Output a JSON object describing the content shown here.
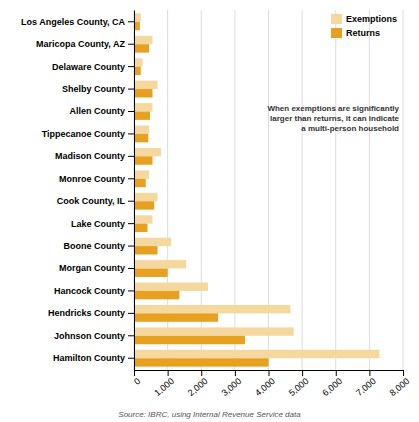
{
  "chart_data": {
    "type": "bar",
    "orientation": "horizontal",
    "categories": [
      "Los Angeles County, CA",
      "Maricopa County, AZ",
      "Delaware County",
      "Shelby County",
      "Allen County",
      "Tippecanoe County",
      "Madison County",
      "Monroe County",
      "Cook County, IL",
      "Lake County",
      "Boone County",
      "Morgan County",
      "Hancock County",
      "Hendricks County",
      "Johnson County",
      "Hamilton County"
    ],
    "series": [
      {
        "name": "Exemptions",
        "color": "#f5d89e",
        "values": [
          200,
          550,
          250,
          700,
          550,
          450,
          800,
          450,
          700,
          550,
          1100,
          1550,
          2200,
          4650,
          4750,
          7300
        ]
      },
      {
        "name": "Returns",
        "color": "#e8a020",
        "values": [
          175,
          450,
          200,
          550,
          475,
          425,
          550,
          350,
          600,
          400,
          700,
          1000,
          1350,
          2500,
          3300,
          4000
        ]
      }
    ],
    "xlim": [
      0,
      8000
    ],
    "xticks": [
      0,
      {
        "value": 1000,
        "label": "1,000"
      },
      {
        "value": 2000,
        "label": "2,000"
      },
      {
        "value": 3000,
        "label": "3,000"
      },
      {
        "value": 4000,
        "label": "4,000"
      },
      {
        "value": 5000,
        "label": "5,000"
      },
      {
        "value": 6000,
        "label": "6,000"
      },
      {
        "value": 7000,
        "label": "7,000"
      },
      {
        "value": 8000,
        "label": "8,000"
      }
    ],
    "grid": true,
    "legend": "upper right",
    "annotations": [
      "When exemptions are significantly\nlarger than returns, it can indicate\na multi-person household",
      "Source: IBRC, using Internal Revenue Service data"
    ]
  }
}
